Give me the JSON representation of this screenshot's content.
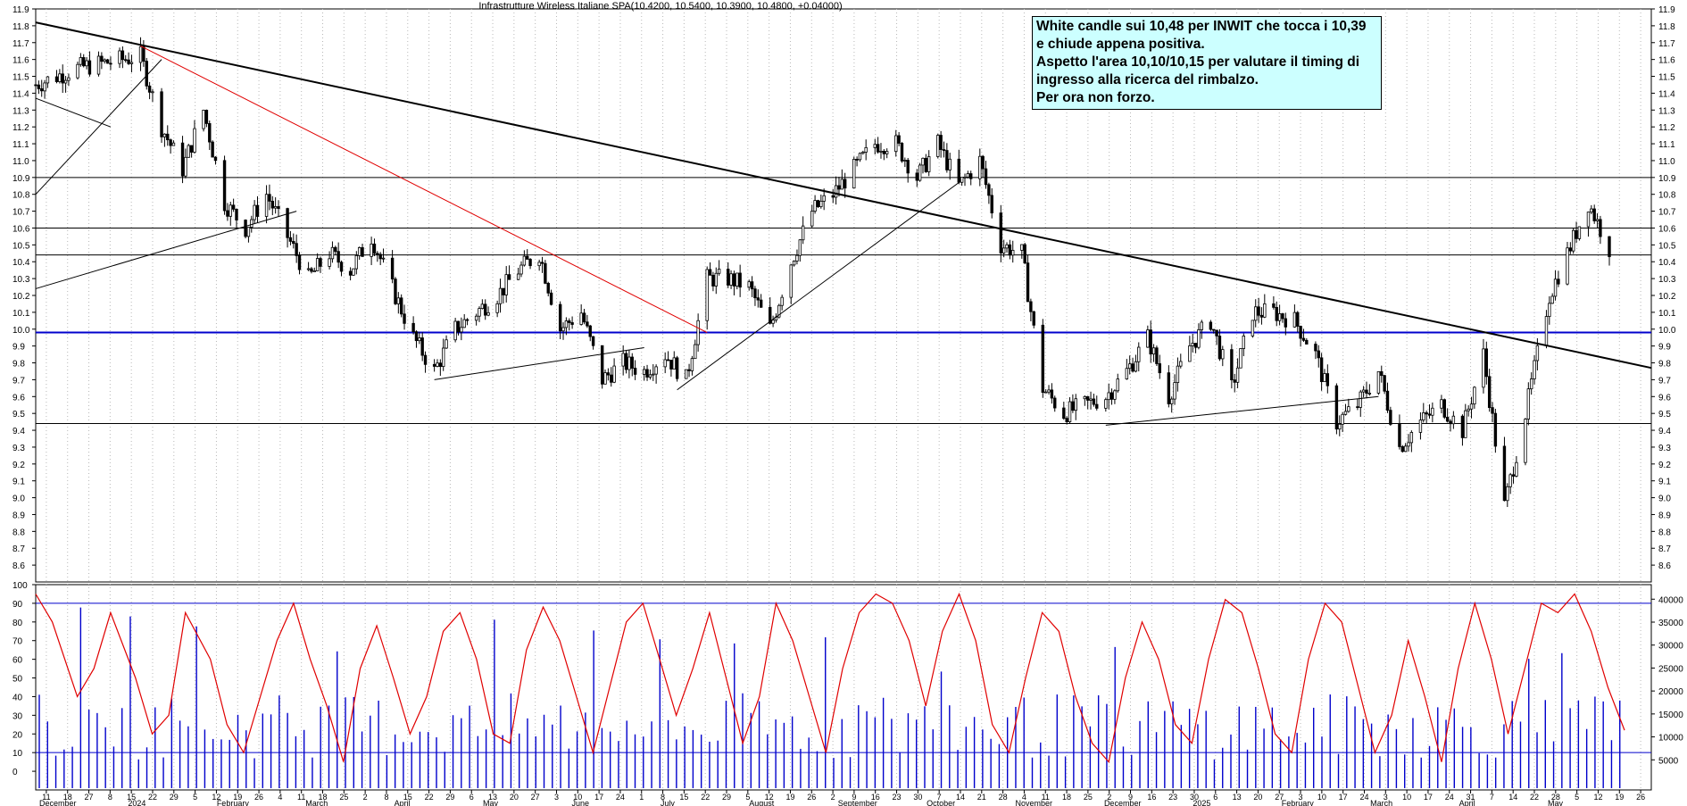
{
  "header": {
    "title": "Infrastrutture Wireless Italiane SPA(10.4200, 10.5400, 10.3900, 10.4800, +0.04000)"
  },
  "annotation": {
    "lines": [
      "White candle sui 10,48 per INWIT che tocca i 10,39",
      "e chiude appena positiva.",
      "Aspetto l'area 10,10/10,15 per valutare il timing di",
      "ingresso alla ricerca del rimbalzo.",
      "Per ora non forzo."
    ]
  },
  "chart_data": [
    {
      "type": "candlestick",
      "title": "Infrastrutture Wireless Italiane SPA(10.4200, 10.5400, 10.3900, 10.4800, +0.04000)",
      "ylim": [
        8.5,
        11.9
      ],
      "y_ticks": [
        8.6,
        8.7,
        8.8,
        8.9,
        9.0,
        9.1,
        9.2,
        9.3,
        9.4,
        9.5,
        9.6,
        9.7,
        9.8,
        9.9,
        10.0,
        10.1,
        10.2,
        10.3,
        10.4,
        10.5,
        10.6,
        10.7,
        10.8,
        10.9,
        11.0,
        11.1,
        11.2,
        11.3,
        11.4,
        11.5,
        11.6,
        11.7,
        11.8,
        11.9
      ],
      "y_tick_labels": [
        "8.6",
        "8.7",
        "8.8",
        "8.9",
        "9.0",
        "9.1",
        "9.2",
        "9.3",
        "9.4",
        "9.5",
        "9.6",
        "9.7",
        "9.8",
        "9.9",
        "10.0",
        "10.1",
        "10.2",
        "10.3",
        "10.4",
        "10.5",
        "10.6",
        "10.7",
        "10.8",
        "10.9",
        "11.0",
        "11.1",
        "11.2",
        "11.3",
        "11.4",
        "11.5",
        "11.6",
        "11.7",
        "11.8",
        "11.9"
      ],
      "x_range": [
        "2023-12-04",
        "2025-05-26"
      ],
      "day_ticks": [
        "11",
        "18",
        "27",
        "8",
        "15",
        "22",
        "29",
        "5",
        "12",
        "19",
        "26",
        "4",
        "11",
        "18",
        "25",
        "2",
        "8",
        "15",
        "22",
        "29",
        "6",
        "13",
        "20",
        "27",
        "3",
        "10",
        "17",
        "24",
        "1",
        "8",
        "15",
        "22",
        "29",
        "5",
        "12",
        "19",
        "26",
        "2",
        "9",
        "16",
        "23",
        "30",
        "7",
        "14",
        "21",
        "28",
        "4",
        "11",
        "18",
        "25",
        "2",
        "9",
        "16",
        "23",
        "30",
        "6",
        "13",
        "20",
        "27",
        "3",
        "10",
        "17",
        "24",
        "3",
        "10",
        "17",
        "24",
        "31",
        "7",
        "14",
        "22",
        "28",
        "5",
        "12",
        "19",
        "26"
      ],
      "month_labels": [
        "December",
        "2024",
        "February",
        "March",
        "April",
        "May",
        "June",
        "July",
        "August",
        "September",
        "October",
        "November",
        "December",
        "2025",
        "February",
        "March",
        "April",
        "May"
      ],
      "horizontal_levels": [
        {
          "value": 10.9,
          "color": "#000000"
        },
        {
          "value": 10.6,
          "color": "#000000"
        },
        {
          "value": 10.44,
          "color": "#000000"
        },
        {
          "value": 9.98,
          "color": "#0000cc"
        },
        {
          "value": 9.44,
          "color": "#000000"
        }
      ],
      "trendlines": [
        {
          "from": [
            "2023-12-04",
            11.82
          ],
          "to": [
            "2025-05-26",
            9.77
          ],
          "color": "#000000"
        },
        {
          "from": [
            "2024-01-08",
            11.68
          ],
          "to": [
            "2024-07-15",
            9.98
          ],
          "color": "#e00000"
        },
        {
          "from": [
            "2023-12-04",
            10.24
          ],
          "to": [
            "2024-02-29",
            10.7
          ],
          "color": "#000000"
        },
        {
          "from": [
            "2023-12-04",
            11.37
          ],
          "to": [
            "2023-12-29",
            11.2
          ],
          "color": "#000000"
        },
        {
          "from": [
            "2023-12-04",
            10.8
          ],
          "to": [
            "2024-01-15",
            11.6
          ],
          "color": "#000000"
        },
        {
          "from": [
            "2024-04-15",
            9.7
          ],
          "to": [
            "2024-06-24",
            9.89
          ],
          "color": "#000000"
        },
        {
          "from": [
            "2024-07-05",
            9.64
          ],
          "to": [
            "2024-10-07",
            10.87
          ],
          "color": "#000000"
        },
        {
          "from": [
            "2024-11-25",
            9.43
          ],
          "to": [
            "2025-02-24",
            9.6
          ],
          "color": "#000000"
        }
      ],
      "ohlc_path": [
        [
          "2023-12-04",
          11.45
        ],
        [
          "2023-12-18",
          11.55
        ],
        [
          "2024-01-08",
          11.62
        ],
        [
          "2024-01-15",
          11.2
        ],
        [
          "2024-01-22",
          10.95
        ],
        [
          "2024-01-29",
          11.3
        ],
        [
          "2024-02-05",
          10.75
        ],
        [
          "2024-02-12",
          10.6
        ],
        [
          "2024-02-19",
          10.8
        ],
        [
          "2024-02-26",
          10.55
        ],
        [
          "2024-03-04",
          10.3
        ],
        [
          "2024-03-11",
          10.45
        ],
        [
          "2024-03-18",
          10.35
        ],
        [
          "2024-03-25",
          10.55
        ],
        [
          "2024-04-02",
          10.2
        ],
        [
          "2024-04-08",
          9.95
        ],
        [
          "2024-04-15",
          9.75
        ],
        [
          "2024-04-22",
          10.0
        ],
        [
          "2024-04-29",
          10.1
        ],
        [
          "2024-05-06",
          10.2
        ],
        [
          "2024-05-13",
          10.35
        ],
        [
          "2024-05-20",
          10.45
        ],
        [
          "2024-05-27",
          10.0
        ],
        [
          "2024-06-03",
          10.1
        ],
        [
          "2024-06-10",
          9.7
        ],
        [
          "2024-06-17",
          9.8
        ],
        [
          "2024-06-24",
          9.75
        ],
        [
          "2024-07-01",
          9.85
        ],
        [
          "2024-07-08",
          9.7
        ],
        [
          "2024-07-15",
          10.3
        ],
        [
          "2024-07-22",
          10.3
        ],
        [
          "2024-07-29",
          10.25
        ],
        [
          "2024-08-05",
          10.0
        ],
        [
          "2024-08-12",
          10.4
        ],
        [
          "2024-08-19",
          10.7
        ],
        [
          "2024-08-26",
          10.8
        ],
        [
          "2024-09-02",
          10.95
        ],
        [
          "2024-09-09",
          11.1
        ],
        [
          "2024-09-16",
          11.1
        ],
        [
          "2024-09-23",
          10.9
        ],
        [
          "2024-09-30",
          11.1
        ],
        [
          "2024-10-07",
          10.85
        ],
        [
          "2024-10-14",
          11.0
        ],
        [
          "2024-10-21",
          10.5
        ],
        [
          "2024-10-28",
          10.45
        ],
        [
          "2024-11-04",
          9.65
        ],
        [
          "2024-11-11",
          9.5
        ],
        [
          "2024-11-18",
          9.55
        ],
        [
          "2024-11-25",
          9.6
        ],
        [
          "2024-12-02",
          9.75
        ],
        [
          "2024-12-09",
          9.95
        ],
        [
          "2024-12-16",
          9.6
        ],
        [
          "2024-12-23",
          9.9
        ],
        [
          "2024-12-30",
          10.05
        ],
        [
          "2025-01-06",
          9.65
        ],
        [
          "2025-01-13",
          10.1
        ],
        [
          "2025-01-20",
          10.1
        ],
        [
          "2025-01-27",
          10.05
        ],
        [
          "2025-02-03",
          9.85
        ],
        [
          "2025-02-10",
          9.45
        ],
        [
          "2025-02-17",
          9.55
        ],
        [
          "2025-02-24",
          9.75
        ],
        [
          "2025-03-03",
          9.3
        ],
        [
          "2025-03-10",
          9.45
        ],
        [
          "2025-03-17",
          9.55
        ],
        [
          "2025-03-24",
          9.4
        ],
        [
          "2025-03-31",
          9.85
        ],
        [
          "2025-04-07",
          8.95
        ],
        [
          "2025-04-14",
          9.5
        ],
        [
          "2025-04-22",
          10.2
        ],
        [
          "2025-04-28",
          10.45
        ],
        [
          "2025-05-05",
          10.75
        ],
        [
          "2025-05-12",
          10.48
        ]
      ]
    },
    {
      "type": "line",
      "ylim": [
        -10,
        100
      ],
      "y_ticks": [
        0,
        10,
        20,
        30,
        40,
        50,
        60,
        70,
        80,
        90,
        100
      ],
      "y_tick_labels": [
        "0",
        "10",
        "20",
        "30",
        "40",
        "50",
        "60",
        "70",
        "80",
        "90",
        "100"
      ],
      "right_axis_ticks": [
        5000,
        10000,
        15000,
        20000,
        25000,
        30000,
        35000,
        40000
      ],
      "right_axis_labels": [
        "5000",
        "10000",
        "15000",
        "20000",
        "25000",
        "30000",
        "35000",
        "40000"
      ],
      "reference_levels": [
        {
          "value": 90,
          "color": "#0000cc"
        },
        {
          "value": 10,
          "color": "#0000cc"
        }
      ],
      "series": [
        {
          "color": "#e00000",
          "kind": "oscillator",
          "path": [
            [
              0,
              95
            ],
            [
              2,
              80
            ],
            [
              5,
              40
            ],
            [
              7,
              55
            ],
            [
              9,
              85
            ],
            [
              12,
              50
            ],
            [
              14,
              20
            ],
            [
              16,
              30
            ],
            [
              18,
              85
            ],
            [
              21,
              60
            ],
            [
              23,
              25
            ],
            [
              25,
              10
            ],
            [
              27,
              40
            ],
            [
              29,
              70
            ],
            [
              31,
              90
            ],
            [
              33,
              60
            ],
            [
              35,
              35
            ],
            [
              37,
              5
            ],
            [
              39,
              55
            ],
            [
              41,
              78
            ],
            [
              43,
              50
            ],
            [
              45,
              20
            ],
            [
              47,
              40
            ],
            [
              49,
              75
            ],
            [
              51,
              85
            ],
            [
              53,
              60
            ],
            [
              55,
              20
            ],
            [
              57,
              15
            ],
            [
              59,
              65
            ],
            [
              61,
              88
            ],
            [
              63,
              70
            ],
            [
              65,
              40
            ],
            [
              67,
              10
            ],
            [
              69,
              45
            ],
            [
              71,
              80
            ],
            [
              73,
              90
            ],
            [
              75,
              60
            ],
            [
              77,
              30
            ],
            [
              79,
              55
            ],
            [
              81,
              85
            ],
            [
              83,
              50
            ],
            [
              85,
              15
            ],
            [
              87,
              40
            ],
            [
              89,
              90
            ],
            [
              91,
              70
            ],
            [
              93,
              40
            ],
            [
              95,
              10
            ],
            [
              97,
              55
            ],
            [
              99,
              85
            ],
            [
              101,
              95
            ],
            [
              103,
              90
            ],
            [
              105,
              70
            ],
            [
              107,
              35
            ],
            [
              109,
              75
            ],
            [
              111,
              95
            ],
            [
              113,
              70
            ],
            [
              115,
              25
            ],
            [
              117,
              10
            ],
            [
              119,
              50
            ],
            [
              121,
              85
            ],
            [
              123,
              75
            ],
            [
              125,
              40
            ],
            [
              127,
              15
            ],
            [
              129,
              5
            ],
            [
              131,
              50
            ],
            [
              133,
              80
            ],
            [
              135,
              60
            ],
            [
              137,
              25
            ],
            [
              139,
              15
            ],
            [
              141,
              60
            ],
            [
              143,
              92
            ],
            [
              145,
              85
            ],
            [
              147,
              55
            ],
            [
              149,
              20
            ],
            [
              151,
              10
            ],
            [
              153,
              60
            ],
            [
              155,
              90
            ],
            [
              157,
              80
            ],
            [
              159,
              45
            ],
            [
              161,
              10
            ],
            [
              163,
              30
            ],
            [
              165,
              70
            ],
            [
              167,
              40
            ],
            [
              169,
              5
            ],
            [
              171,
              55
            ],
            [
              173,
              90
            ],
            [
              175,
              60
            ],
            [
              177,
              20
            ],
            [
              179,
              55
            ],
            [
              181,
              90
            ],
            [
              183,
              85
            ],
            [
              185,
              95
            ],
            [
              187,
              75
            ],
            [
              189,
              45
            ],
            [
              191,
              22
            ]
          ]
        },
        {
          "color": "#0000cc",
          "kind": "volume-bars",
          "count": 192
        }
      ]
    }
  ]
}
